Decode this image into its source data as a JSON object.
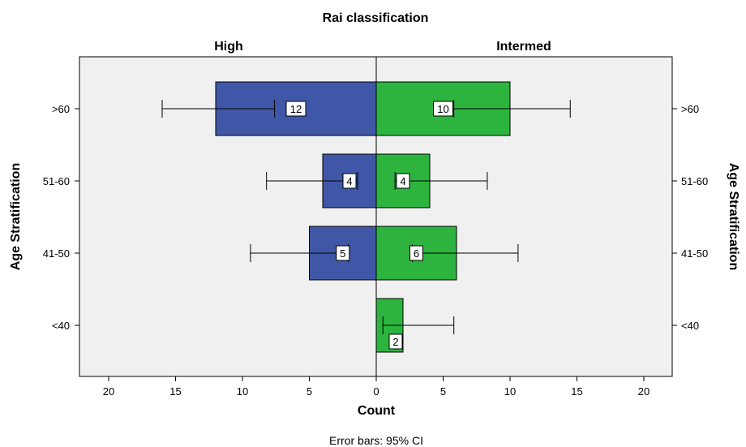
{
  "chart_data": {
    "type": "bar",
    "orientation": "horizontal-population-pyramid",
    "title": "Rai classification",
    "categories": [
      ">60",
      "51-60",
      "41-50",
      "<40"
    ],
    "series": [
      {
        "name": "High",
        "side": "left",
        "color": "#3F57A6",
        "values": [
          12,
          4,
          5,
          0
        ],
        "error_low": [
          7.6,
          1.4,
          2.1,
          null
        ],
        "error_high": [
          16,
          8.2,
          9.4,
          null
        ]
      },
      {
        "name": "Intermed",
        "side": "right",
        "color": "#2DB43E",
        "values": [
          10,
          4,
          6,
          2
        ],
        "error_low": [
          5.8,
          1.4,
          2.7,
          0.5
        ],
        "error_high": [
          14.5,
          8.3,
          10.6,
          5.8
        ]
      }
    ],
    "xlabel": "Count",
    "ylabel": "Age Stratification",
    "xlim": [
      0,
      20
    ],
    "xticks": [
      "20",
      "15",
      "10",
      "5",
      "0",
      "5",
      "10",
      "15",
      "20"
    ],
    "footnote": "Error bars: 95% CI",
    "grid": false,
    "background_color": "#F0F0F0"
  }
}
